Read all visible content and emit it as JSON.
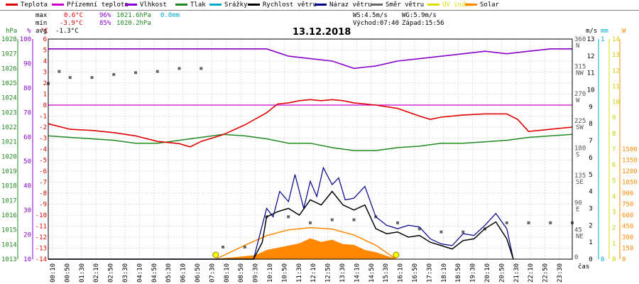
{
  "legend": [
    {
      "label": "Teplota",
      "color": "#dd0000"
    },
    {
      "label": "Přízemní teplota",
      "color": "#cc00cc"
    },
    {
      "label": "Vlhkost",
      "color": "#8800cc"
    },
    {
      "label": "Tlak",
      "color": "#228822"
    },
    {
      "label": "Srážky",
      "color": "#00aacc"
    },
    {
      "label": "Rychlost větru",
      "color": "#000000"
    },
    {
      "label": "Náraz větru",
      "color": "#000088"
    },
    {
      "label": "Směr větru",
      "color": "#666666"
    },
    {
      "label": "UV index",
      "color": "#dddd00"
    },
    {
      "label": "Solar",
      "color": "#ff8800"
    }
  ],
  "stats": {
    "max": {
      "label": "max",
      "temp": "0.6°C",
      "hum": "96%",
      "press": "1021.6hPa",
      "rain": "0.0mm"
    },
    "min": {
      "label": "min",
      "temp": "-3.9°C",
      "hum": "85%",
      "press": "1020.2hPa"
    },
    "avg": {
      "label": "avg",
      "temp": "-1.3°C"
    }
  },
  "date": "13.12.2018",
  "wind_info": {
    "ws": "WS:4.5m/s",
    "wg": "WG:5.9m/s",
    "sunrise": "Východ:07:40",
    "sunset": "Západ:15:56"
  },
  "colors": {
    "temp": "#dd0000",
    "ground": "#cc00cc",
    "hum": "#8800cc",
    "press": "#228822",
    "rain": "#00aacc",
    "speed": "#000000",
    "gust": "#000088",
    "dir": "#666666",
    "uv": "#dddd00",
    "solar": "#ff8800"
  },
  "axes": {
    "hpa": {
      "unit": "hPa",
      "ticks": [
        "1028",
        "1027",
        "1026",
        "1025",
        "1024",
        "1023",
        "1022",
        "1021",
        "1020",
        "1019",
        "1018",
        "1017",
        "1016",
        "1015",
        "1014",
        "1013"
      ]
    },
    "hum": {
      "unit": "%",
      "ticks": [
        "100",
        "90",
        "80",
        "70",
        "60",
        "50",
        "40",
        "30",
        "20",
        "10"
      ]
    },
    "temp": {
      "unit": "°C",
      "ticks": [
        "6",
        "5",
        "4",
        "3",
        "2",
        "1",
        "0",
        "-1",
        "-2",
        "-3",
        "-4",
        "-5",
        "-6",
        "-7",
        "-8",
        "-9",
        "-10",
        "-11",
        "-12",
        "-13",
        "-14"
      ]
    },
    "dir": {
      "ticks": [
        "360",
        "315",
        "270",
        "225",
        "180",
        "135",
        "90",
        "45",
        "0"
      ],
      "labels": [
        "N",
        "NW",
        "W",
        "SW",
        "S",
        "SE",
        "E",
        "NE",
        ""
      ]
    },
    "ms": {
      "unit": "m/s",
      "ticks": [
        "13",
        "12",
        "11",
        "10",
        "9",
        "8",
        "7",
        "6",
        "5",
        "4",
        "3",
        "2",
        "1",
        "0"
      ]
    },
    "mm": {
      "unit": "mm",
      "ticks": [
        "1",
        "0"
      ]
    },
    "uv": {
      "ticks": [
        "14",
        "13",
        "12",
        "11",
        "10",
        "9",
        "8",
        "7",
        "6",
        "5",
        "4",
        "3",
        "2",
        "1",
        "0"
      ]
    },
    "w": {
      "unit": "W",
      "ticks": [
        "1500",
        "1350",
        "1200",
        "1050",
        "900",
        "750",
        "600",
        "450",
        "300",
        "150",
        "0"
      ]
    },
    "x_label": "čas",
    "x_ticks": [
      "00:10",
      "00:50",
      "01:30",
      "02:10",
      "02:50",
      "03:30",
      "04:10",
      "04:50",
      "05:30",
      "06:10",
      "06:50",
      "07:30",
      "08:10",
      "08:50",
      "09:30",
      "10:10",
      "10:50",
      "11:30",
      "12:10",
      "12:50",
      "13:30",
      "14:10",
      "14:50",
      "15:30",
      "16:10",
      "16:50",
      "17:30",
      "18:10",
      "18:50",
      "19:30",
      "20:10",
      "20:50",
      "21:30",
      "22:10",
      "22:50",
      "23:30"
    ]
  },
  "chart_data": {
    "type": "line",
    "title": "13.12.2018",
    "xlabel": "čas",
    "xlim": [
      "00:00",
      "24:00"
    ],
    "temp_range": [
      -14,
      6
    ],
    "series": [
      {
        "name": "Teplota",
        "unit": "°C",
        "points": [
          [
            0,
            -1.7
          ],
          [
            1,
            -2.2
          ],
          [
            2,
            -2.3
          ],
          [
            3,
            -2.5
          ],
          [
            4,
            -2.8
          ],
          [
            5,
            -3.3
          ],
          [
            6,
            -3.5
          ],
          [
            6.5,
            -3.8
          ],
          [
            7,
            -3.3
          ],
          [
            8,
            -2.7
          ],
          [
            9,
            -1.8
          ],
          [
            10,
            -0.7
          ],
          [
            10.5,
            0.1
          ],
          [
            11,
            0.2
          ],
          [
            11.5,
            0.4
          ],
          [
            12,
            0.5
          ],
          [
            12.5,
            0.4
          ],
          [
            13,
            0.5
          ],
          [
            13.5,
            0.4
          ],
          [
            14,
            0.2
          ],
          [
            15,
            0
          ],
          [
            16,
            -0.3
          ],
          [
            17,
            -1
          ],
          [
            17.5,
            -1.3
          ],
          [
            18,
            -1.1
          ],
          [
            19,
            -0.9
          ],
          [
            20,
            -0.8
          ],
          [
            21,
            -0.8
          ],
          [
            21.5,
            -1.3
          ],
          [
            22,
            -2.4
          ],
          [
            23,
            -2.2
          ],
          [
            24,
            -2.0
          ]
        ]
      },
      {
        "name": "Přízemní teplota",
        "unit": "°C",
        "points": [
          [
            0,
            0
          ],
          [
            24,
            0
          ]
        ]
      },
      {
        "name": "Vlhkost",
        "unit": "%",
        "points": [
          [
            0,
            96
          ],
          [
            10,
            96
          ],
          [
            11,
            93
          ],
          [
            12,
            92
          ],
          [
            13,
            91
          ],
          [
            14,
            88
          ],
          [
            15,
            89
          ],
          [
            16,
            91
          ],
          [
            17,
            92
          ],
          [
            19,
            94
          ],
          [
            20,
            95
          ],
          [
            21,
            94
          ],
          [
            22,
            95
          ],
          [
            23,
            96
          ],
          [
            24,
            96
          ]
        ]
      },
      {
        "name": "Tlak",
        "unit": "hPa",
        "points": [
          [
            0,
            1021.4
          ],
          [
            1,
            1021.3
          ],
          [
            2,
            1021.2
          ],
          [
            3,
            1021.1
          ],
          [
            4,
            1020.9
          ],
          [
            5,
            1020.9
          ],
          [
            6,
            1021.1
          ],
          [
            7,
            1021.3
          ],
          [
            8,
            1021.5
          ],
          [
            9,
            1021.4
          ],
          [
            10,
            1021.2
          ],
          [
            11,
            1020.9
          ],
          [
            12,
            1020.9
          ],
          [
            13,
            1020.6
          ],
          [
            14,
            1020.4
          ],
          [
            15,
            1020.4
          ],
          [
            16,
            1020.6
          ],
          [
            17,
            1020.7
          ],
          [
            18,
            1020.9
          ],
          [
            19,
            1020.9
          ],
          [
            20,
            1021.0
          ],
          [
            21,
            1021.1
          ],
          [
            22,
            1021.3
          ],
          [
            23,
            1021.4
          ],
          [
            24,
            1021.5
          ]
        ]
      },
      {
        "name": "Srážky",
        "unit": "mm",
        "points": [
          [
            0,
            0
          ],
          [
            24,
            0
          ]
        ]
      },
      {
        "name": "Rychlost větru",
        "unit": "m/s",
        "points": [
          [
            0,
            0
          ],
          [
            9.4,
            0
          ],
          [
            9.8,
            1
          ],
          [
            10,
            2.5
          ],
          [
            10.5,
            2.8
          ],
          [
            11,
            3
          ],
          [
            11.5,
            2.6
          ],
          [
            12,
            3.5
          ],
          [
            12.5,
            3.2
          ],
          [
            13,
            4
          ],
          [
            13.5,
            3.2
          ],
          [
            14,
            2.9
          ],
          [
            14.5,
            3.2
          ],
          [
            15,
            1.8
          ],
          [
            15.5,
            1.5
          ],
          [
            16,
            1.6
          ],
          [
            16.5,
            1.3
          ],
          [
            17,
            1.4
          ],
          [
            17.5,
            1
          ],
          [
            18,
            0.8
          ],
          [
            18.5,
            0.6
          ],
          [
            19,
            1.1
          ],
          [
            19.5,
            1.2
          ],
          [
            20,
            1.8
          ],
          [
            20.5,
            2.2
          ],
          [
            21,
            1.2
          ],
          [
            21.3,
            0
          ]
        ]
      },
      {
        "name": "Náraz větru",
        "unit": "m/s",
        "points": [
          [
            0,
            0
          ],
          [
            9.4,
            0
          ],
          [
            9.7,
            1.5
          ],
          [
            10,
            3
          ],
          [
            10.3,
            2.5
          ],
          [
            10.6,
            4
          ],
          [
            11,
            3.4
          ],
          [
            11.3,
            5
          ],
          [
            11.7,
            3
          ],
          [
            12,
            4.6
          ],
          [
            12.3,
            3.7
          ],
          [
            12.6,
            5.4
          ],
          [
            13,
            4.4
          ],
          [
            13.3,
            4.8
          ],
          [
            13.6,
            3.5
          ],
          [
            14,
            3.6
          ],
          [
            14.5,
            4.3
          ],
          [
            15,
            2.5
          ],
          [
            15.5,
            2
          ],
          [
            16,
            1.8
          ],
          [
            16.5,
            2
          ],
          [
            17,
            1.9
          ],
          [
            17.5,
            1.2
          ],
          [
            18,
            0.9
          ],
          [
            18.5,
            0.8
          ],
          [
            19,
            1.5
          ],
          [
            19.5,
            1.4
          ],
          [
            20,
            2
          ],
          [
            20.5,
            2.7
          ],
          [
            21,
            1.8
          ],
          [
            21.3,
            0
          ]
        ]
      },
      {
        "name": "Směr větru",
        "unit": "°",
        "points": [
          [
            0,
            290
          ],
          [
            0.5,
            310
          ],
          [
            1,
            300
          ],
          [
            2,
            300
          ],
          [
            3,
            305
          ],
          [
            4,
            308
          ],
          [
            5,
            310
          ],
          [
            6,
            315
          ],
          [
            7,
            315
          ],
          [
            8,
            20
          ],
          [
            9,
            20
          ],
          [
            10,
            70
          ],
          [
            11,
            70
          ],
          [
            12,
            60
          ],
          [
            13,
            65
          ],
          [
            14,
            65
          ],
          [
            15,
            70
          ],
          [
            16,
            60
          ],
          [
            17,
            50
          ],
          [
            18,
            45
          ],
          [
            19,
            45
          ],
          [
            20,
            50
          ],
          [
            21,
            60
          ],
          [
            22,
            60
          ],
          [
            23,
            60
          ],
          [
            24,
            60
          ]
        ]
      },
      {
        "name": "UV index",
        "points": [
          [
            7.67,
            0
          ],
          [
            15.93,
            0
          ]
        ]
      },
      {
        "name": "Solar",
        "unit": "W",
        "points": [
          [
            7.67,
            0
          ],
          [
            8.5,
            20
          ],
          [
            9.5,
            50
          ],
          [
            10,
            120
          ],
          [
            10.5,
            150
          ],
          [
            11,
            180
          ],
          [
            11.5,
            210
          ],
          [
            12,
            280
          ],
          [
            12.5,
            230
          ],
          [
            13,
            260
          ],
          [
            13.5,
            200
          ],
          [
            14,
            190
          ],
          [
            14.5,
            120
          ],
          [
            15,
            90
          ],
          [
            15.5,
            40
          ],
          [
            15.93,
            0
          ]
        ]
      },
      {
        "name": "Solar max",
        "unit": "W",
        "points": [
          [
            7.67,
            0
          ],
          [
            9,
            190
          ],
          [
            10,
            320
          ],
          [
            11,
            400
          ],
          [
            12,
            430
          ],
          [
            13,
            410
          ],
          [
            14,
            330
          ],
          [
            15,
            190
          ],
          [
            15.93,
            0
          ]
        ]
      }
    ]
  }
}
